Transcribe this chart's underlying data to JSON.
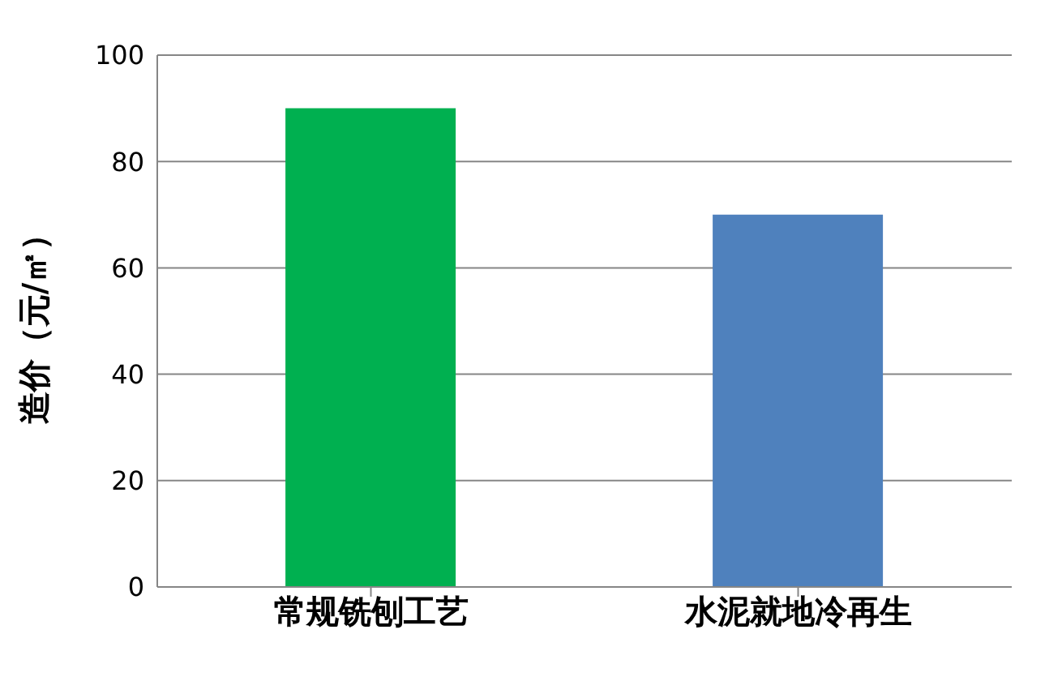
{
  "chart_data": {
    "type": "bar",
    "ylabel": "造价（元/㎡）",
    "categories": [
      "常规铣刨工艺",
      "水泥就地冷再生"
    ],
    "values": [
      90,
      70
    ],
    "colors": [
      "#00b050",
      "#4f81bd"
    ],
    "ylim": [
      0,
      100
    ],
    "yticks": [
      0,
      20,
      40,
      60,
      80,
      100
    ],
    "grid": "y",
    "legend": false
  }
}
